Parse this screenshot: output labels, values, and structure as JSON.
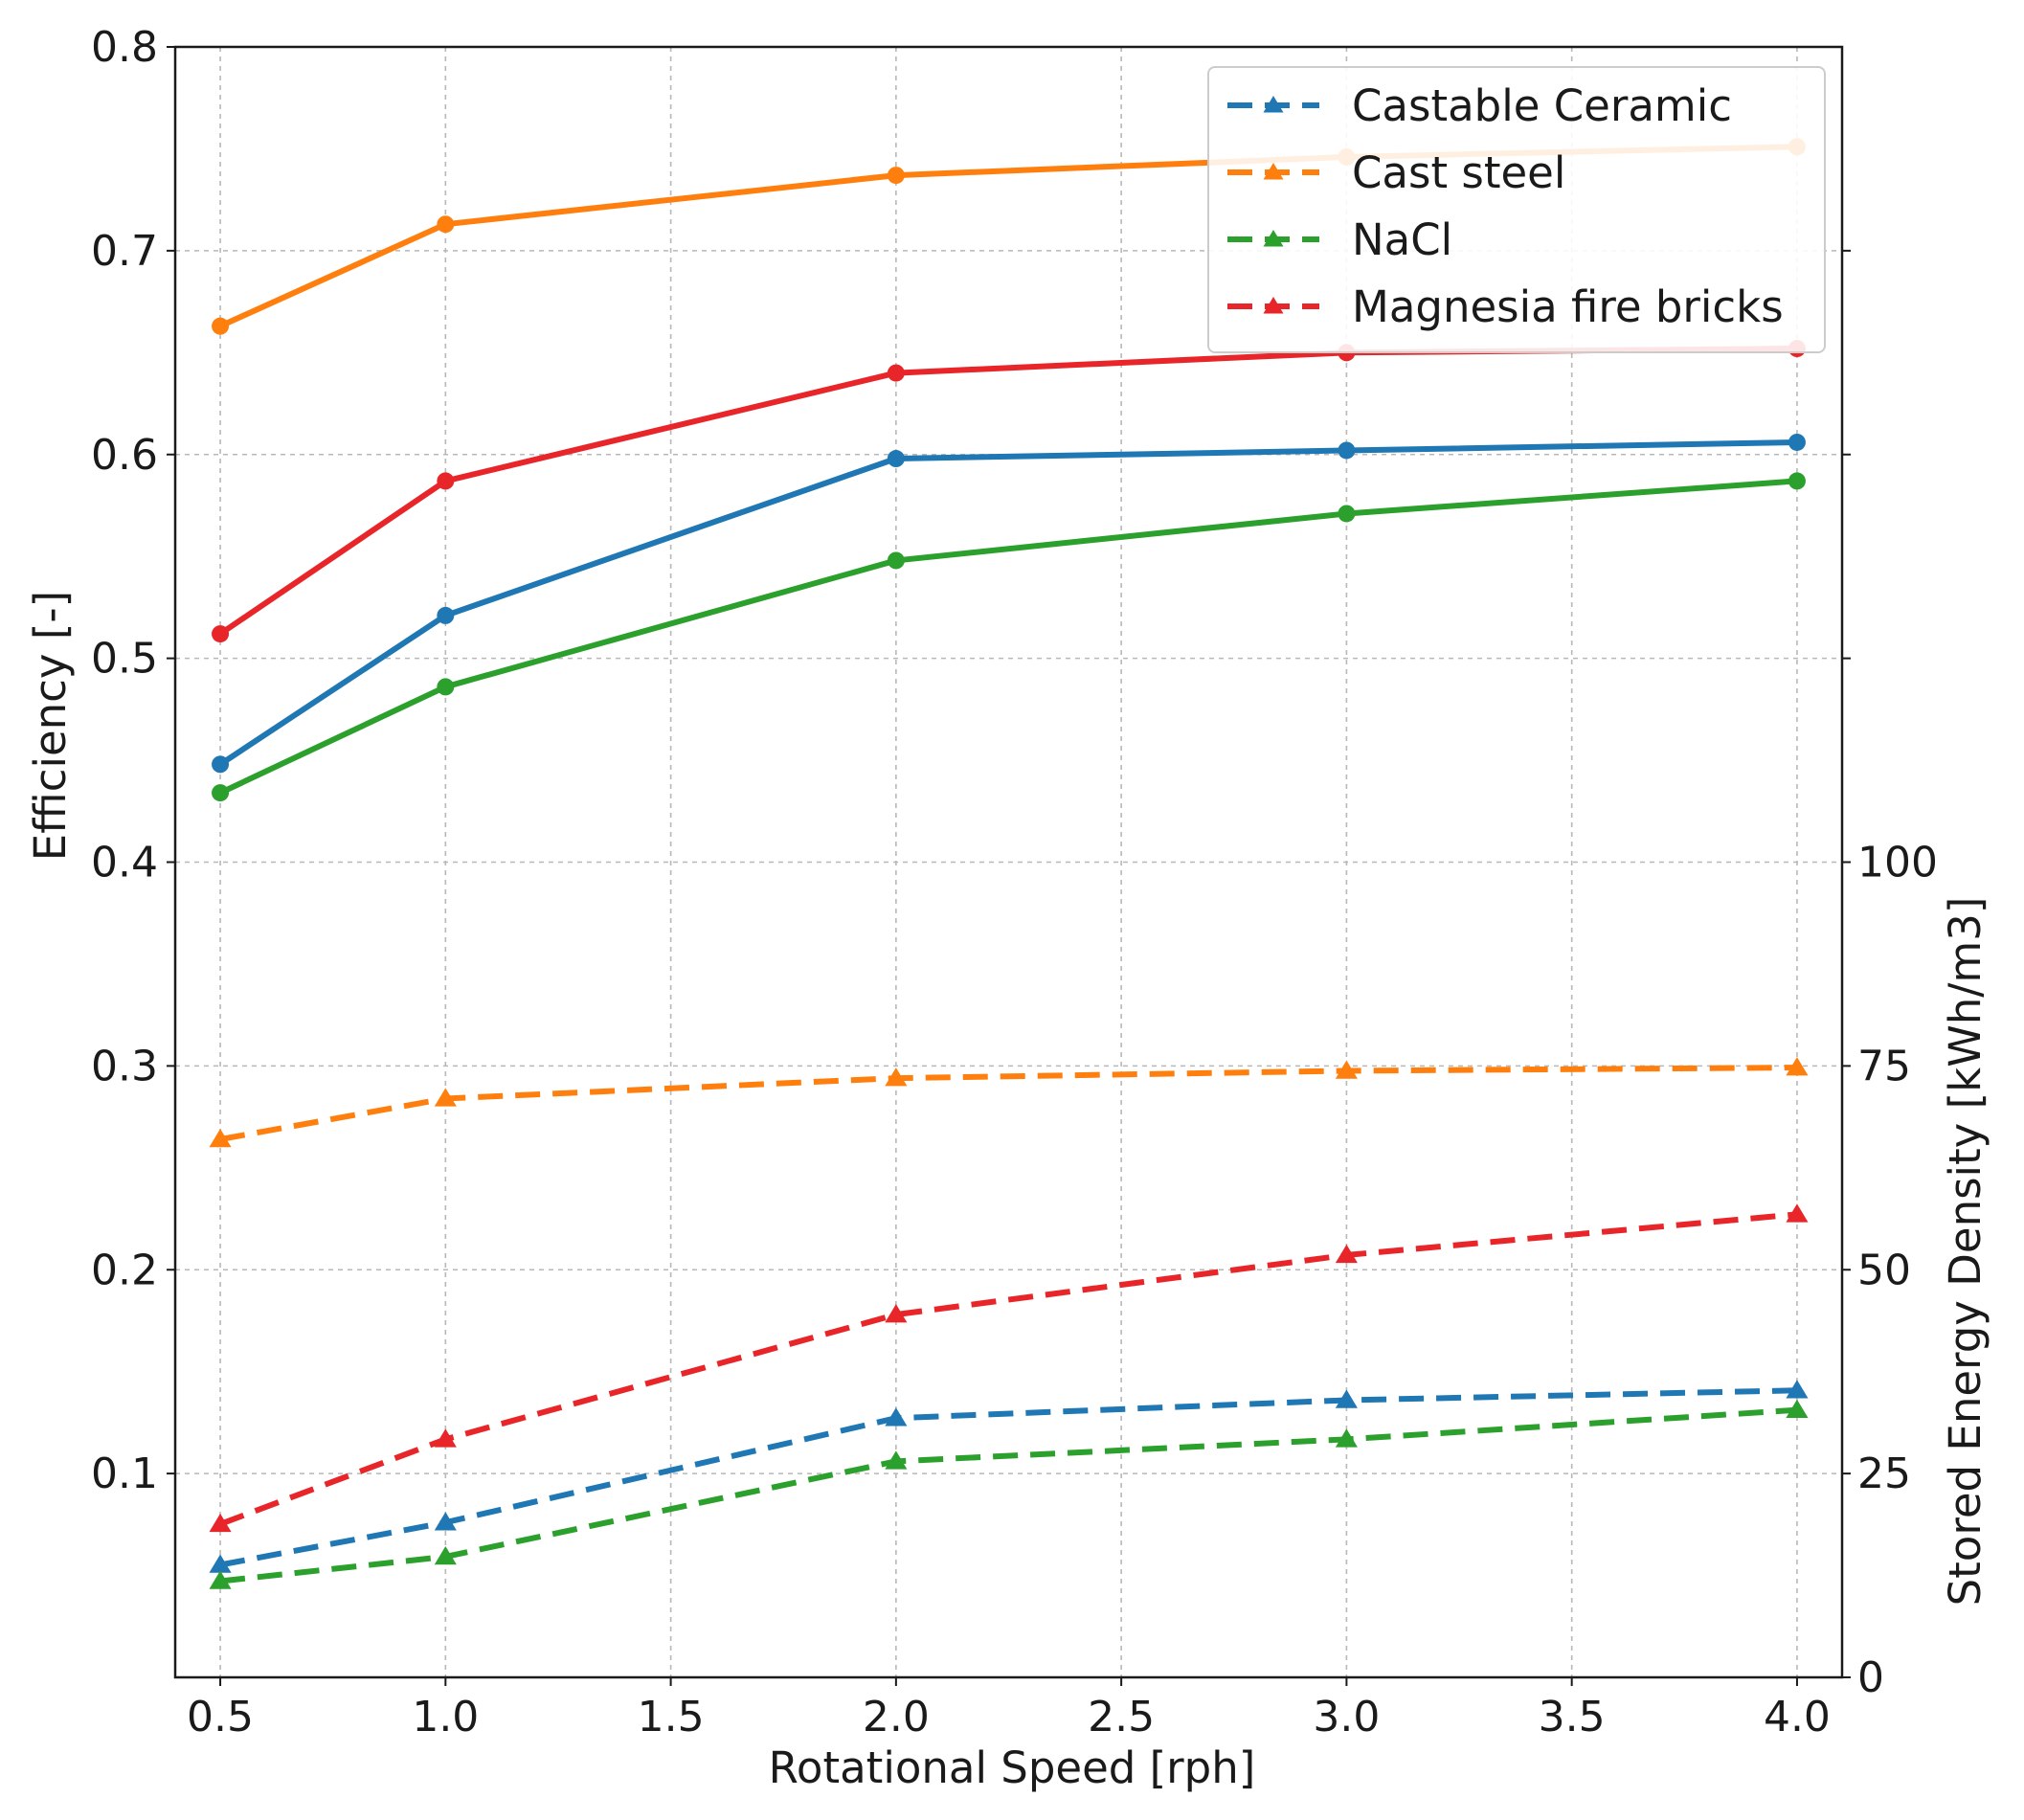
{
  "chart_data": {
    "type": "line",
    "xlabel": "Rotational Speed [rph]",
    "ylabel_left": "Efficiency [-]",
    "ylabel_right": "Stored Energy Density [kWh/m3]",
    "x": [
      0.5,
      1.0,
      2.0,
      3.0,
      4.0
    ],
    "xlim": [
      0.4,
      4.1
    ],
    "ylim_left": [
      0.0,
      0.8
    ],
    "ylim_right": [
      0,
      200
    ],
    "x_ticks": [
      0.5,
      1.0,
      1.5,
      2.0,
      2.5,
      3.0,
      3.5,
      4.0
    ],
    "x_tick_labels": [
      "0.5",
      "1.0",
      "1.5",
      "2.0",
      "2.5",
      "3.0",
      "3.5",
      "4.0"
    ],
    "y_left_ticks": [
      0.1,
      0.2,
      0.3,
      0.4,
      0.5,
      0.6,
      0.7,
      0.8
    ],
    "y_left_tick_labels": [
      "0.1",
      "0.2",
      "0.3",
      "0.4",
      "0.5",
      "0.6",
      "0.7",
      "0.8"
    ],
    "y_right_ticks": [
      0,
      25,
      50,
      75,
      100
    ],
    "y_right_tick_labels": [
      "0",
      "25",
      "50",
      "75",
      "100"
    ],
    "y_right_extra_ticks": [
      125,
      150,
      175
    ],
    "grid": true,
    "legend_position": "top-right",
    "legend": [
      "Castable Ceramic",
      "Cast steel",
      "NaCl",
      "Magnesia fire bricks"
    ],
    "efficiency_series": [
      {
        "name": "Castable Ceramic",
        "color": "#1f77b4",
        "values": [
          0.448,
          0.521,
          0.598,
          0.602,
          0.606
        ]
      },
      {
        "name": "Cast steel",
        "color": "#ff7f0e",
        "values": [
          0.663,
          0.713,
          0.737,
          0.746,
          0.751
        ]
      },
      {
        "name": "NaCl",
        "color": "#2ca02c",
        "values": [
          0.434,
          0.486,
          0.548,
          0.571,
          0.587
        ]
      },
      {
        "name": "Magnesia fire bricks",
        "color": "#e8262a",
        "values": [
          0.512,
          0.587,
          0.64,
          0.65,
          0.652
        ]
      }
    ],
    "energy_density_series": [
      {
        "name": "Castable Ceramic",
        "color": "#1f77b4",
        "values": [
          13.8,
          19.0,
          31.8,
          34.0,
          35.2
        ]
      },
      {
        "name": "Cast steel",
        "color": "#ff7f0e",
        "values": [
          66.0,
          71.0,
          73.5,
          74.4,
          74.8
        ]
      },
      {
        "name": "NaCl",
        "color": "#2ca02c",
        "values": [
          11.8,
          14.8,
          26.5,
          29.2,
          32.8
        ]
      },
      {
        "name": "Magnesia fire bricks",
        "color": "#e8262a",
        "values": [
          18.8,
          29.2,
          44.5,
          51.8,
          56.8
        ]
      }
    ]
  }
}
